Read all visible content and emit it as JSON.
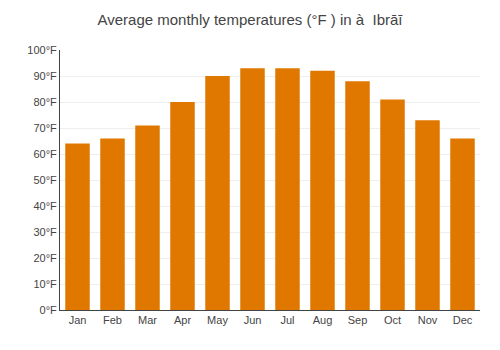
{
  "chart_data": {
    "type": "bar",
    "title": "Average monthly temperatures (°F ) in à  Ibrāī",
    "categories": [
      "Jan",
      "Feb",
      "Mar",
      "Apr",
      "May",
      "Jun",
      "Jul",
      "Aug",
      "Sep",
      "Oct",
      "Nov",
      "Dec"
    ],
    "values": [
      64,
      66,
      71,
      80,
      90,
      93,
      93,
      92,
      88,
      81,
      73,
      66
    ],
    "color": "#E07800",
    "ylim": [
      0,
      100
    ],
    "yticks": [
      {
        "value": 0,
        "label": "0°F"
      },
      {
        "value": 10,
        "label": "10°F"
      },
      {
        "value": 20,
        "label": "20°F"
      },
      {
        "value": 30,
        "label": "30°F"
      },
      {
        "value": 40,
        "label": "40°F"
      },
      {
        "value": 50,
        "label": "50°F"
      },
      {
        "value": 60,
        "label": "60°F"
      },
      {
        "value": 70,
        "label": "70°F"
      },
      {
        "value": 80,
        "label": "80°F"
      },
      {
        "value": 90,
        "label": "90°F"
      },
      {
        "value": 100,
        "label": "100°F"
      }
    ],
    "grid": true
  }
}
